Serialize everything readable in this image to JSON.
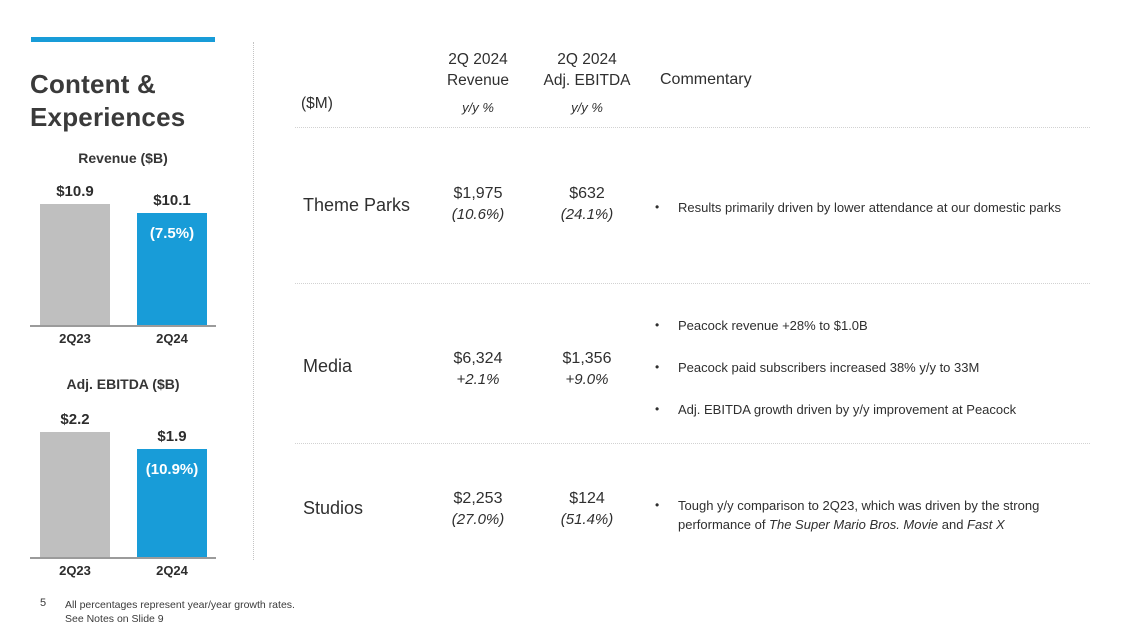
{
  "slide": {
    "title_lines": [
      "Content &",
      "Experiences"
    ],
    "page_number": "5",
    "footnote_lines": [
      "All percentages represent year/year growth rates.",
      "See Notes on Slide 9"
    ]
  },
  "colors": {
    "accent": "#189CD8",
    "bar_gray": "#BFBFBF",
    "bar_blue": "#189CD8"
  },
  "chart_data": [
    {
      "type": "bar",
      "title": "Revenue ($B)",
      "categories": [
        "2Q23",
        "2Q24"
      ],
      "values": [
        10.9,
        10.1
      ],
      "value_labels": [
        "$10.9",
        "$10.1"
      ],
      "change_labels": [
        "",
        "(7.5%)"
      ],
      "bar_colors": [
        "#BFBFBF",
        "#189CD8"
      ],
      "ylim": [
        0,
        11.5
      ],
      "grid": false,
      "legend": false
    },
    {
      "type": "bar",
      "title": "Adj. EBITDA ($B)",
      "categories": [
        "2Q23",
        "2Q24"
      ],
      "values": [
        2.2,
        1.9
      ],
      "value_labels": [
        "$2.2",
        "$1.9"
      ],
      "change_labels": [
        "",
        "(10.9%)"
      ],
      "bar_colors": [
        "#BFBFBF",
        "#189CD8"
      ],
      "ylim": [
        0,
        2.4
      ],
      "grid": false,
      "legend": false
    }
  ],
  "table": {
    "unit_label": "($M)",
    "bullet": "•",
    "col_headers": [
      {
        "line1": "2Q 2024",
        "line2": "Revenue",
        "sub": "y/y %"
      },
      {
        "line1": "2Q 2024",
        "line2": "Adj. EBITDA",
        "sub": "y/y %"
      },
      {
        "line1": "Commentary"
      }
    ],
    "rows": [
      {
        "segment": "Theme Parks",
        "revenue": "$1,975",
        "revenue_yoy": "(10.6%)",
        "ebitda": "$632",
        "ebitda_yoy": "(24.1%)",
        "commentary": [
          {
            "segments": [
              {
                "text": "Results primarily driven by lower attendance at our domestic parks"
              }
            ]
          }
        ]
      },
      {
        "segment": "Media",
        "revenue": "$6,324",
        "revenue_yoy": "+2.1%",
        "ebitda": "$1,356",
        "ebitda_yoy": "+9.0%",
        "commentary": [
          {
            "segments": [
              {
                "text": "Peacock revenue +28% to $1.0B"
              }
            ]
          },
          {
            "segments": [
              {
                "text": "Peacock paid subscribers increased 38% y/y to 33M"
              }
            ]
          },
          {
            "segments": [
              {
                "text": "Adj. EBITDA growth driven by y/y improvement at Peacock"
              }
            ]
          }
        ]
      },
      {
        "segment": "Studios",
        "revenue": "$2,253",
        "revenue_yoy": "(27.0%)",
        "ebitda": "$124",
        "ebitda_yoy": "(51.4%)",
        "commentary": [
          {
            "segments": [
              {
                "text": "Tough y/y comparison to 2Q23, which was driven by the strong performance of "
              },
              {
                "text": "The Super Mario Bros. Movie",
                "italic": true
              },
              {
                "text": " and "
              },
              {
                "text": "Fast X",
                "italic": true
              }
            ]
          }
        ]
      }
    ]
  }
}
